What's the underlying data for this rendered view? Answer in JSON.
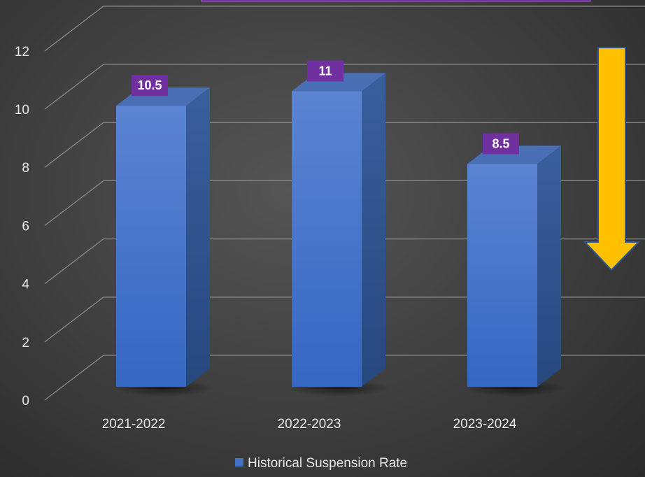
{
  "chart_data": {
    "type": "bar",
    "categories": [
      "2021-2022",
      "2022-2023",
      "2023-2024"
    ],
    "series": [
      {
        "name": "Historical Suspension Rate",
        "values": [
          10.5,
          11,
          8.5
        ]
      }
    ],
    "data_labels": [
      "10.5",
      "11",
      "8.5"
    ],
    "y_ticks": [
      "0",
      "2",
      "4",
      "6",
      "8",
      "10",
      "12"
    ],
    "ylim": [
      0,
      12
    ],
    "grid": true,
    "legend_position": "bottom",
    "style": "3d-column",
    "colors": {
      "bar_front": "#4472c4",
      "bar_side": "#2f5597",
      "label_bg": "#7030a0",
      "arrow": "#ffc000"
    },
    "annotations": [
      {
        "type": "arrow",
        "direction": "down",
        "color": "#ffc000"
      }
    ]
  }
}
